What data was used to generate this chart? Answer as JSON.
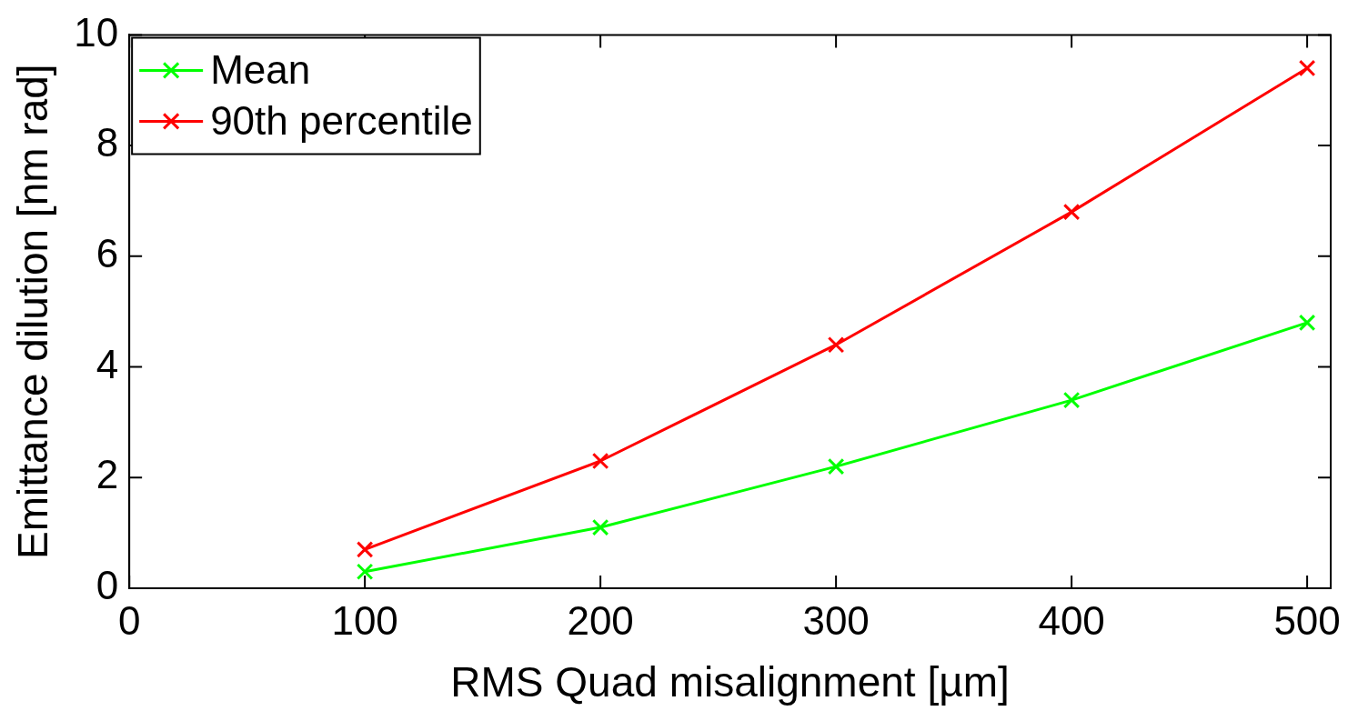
{
  "chart_data": {
    "type": "line",
    "xlabel": "RMS Quad misalignment [µm]",
    "ylabel": "Emittance dilution [nm rad]",
    "x": [
      100,
      200,
      300,
      400,
      500
    ],
    "series": [
      {
        "name": "Mean",
        "color": "#00ff00",
        "values": [
          0.3,
          1.1,
          2.2,
          3.4,
          4.8
        ]
      },
      {
        "name": "90th percentile",
        "color": "#ff0000",
        "values": [
          0.7,
          2.3,
          4.4,
          6.8,
          9.4
        ]
      }
    ],
    "xlim": [
      0,
      510
    ],
    "xticks": [
      0,
      100,
      200,
      300,
      400,
      500
    ],
    "ylim": [
      0,
      10
    ],
    "yticks": [
      0,
      2,
      4,
      6,
      8,
      10
    ],
    "marker": "cross",
    "line_style": "solid",
    "legend": "top left",
    "grid": false
  }
}
